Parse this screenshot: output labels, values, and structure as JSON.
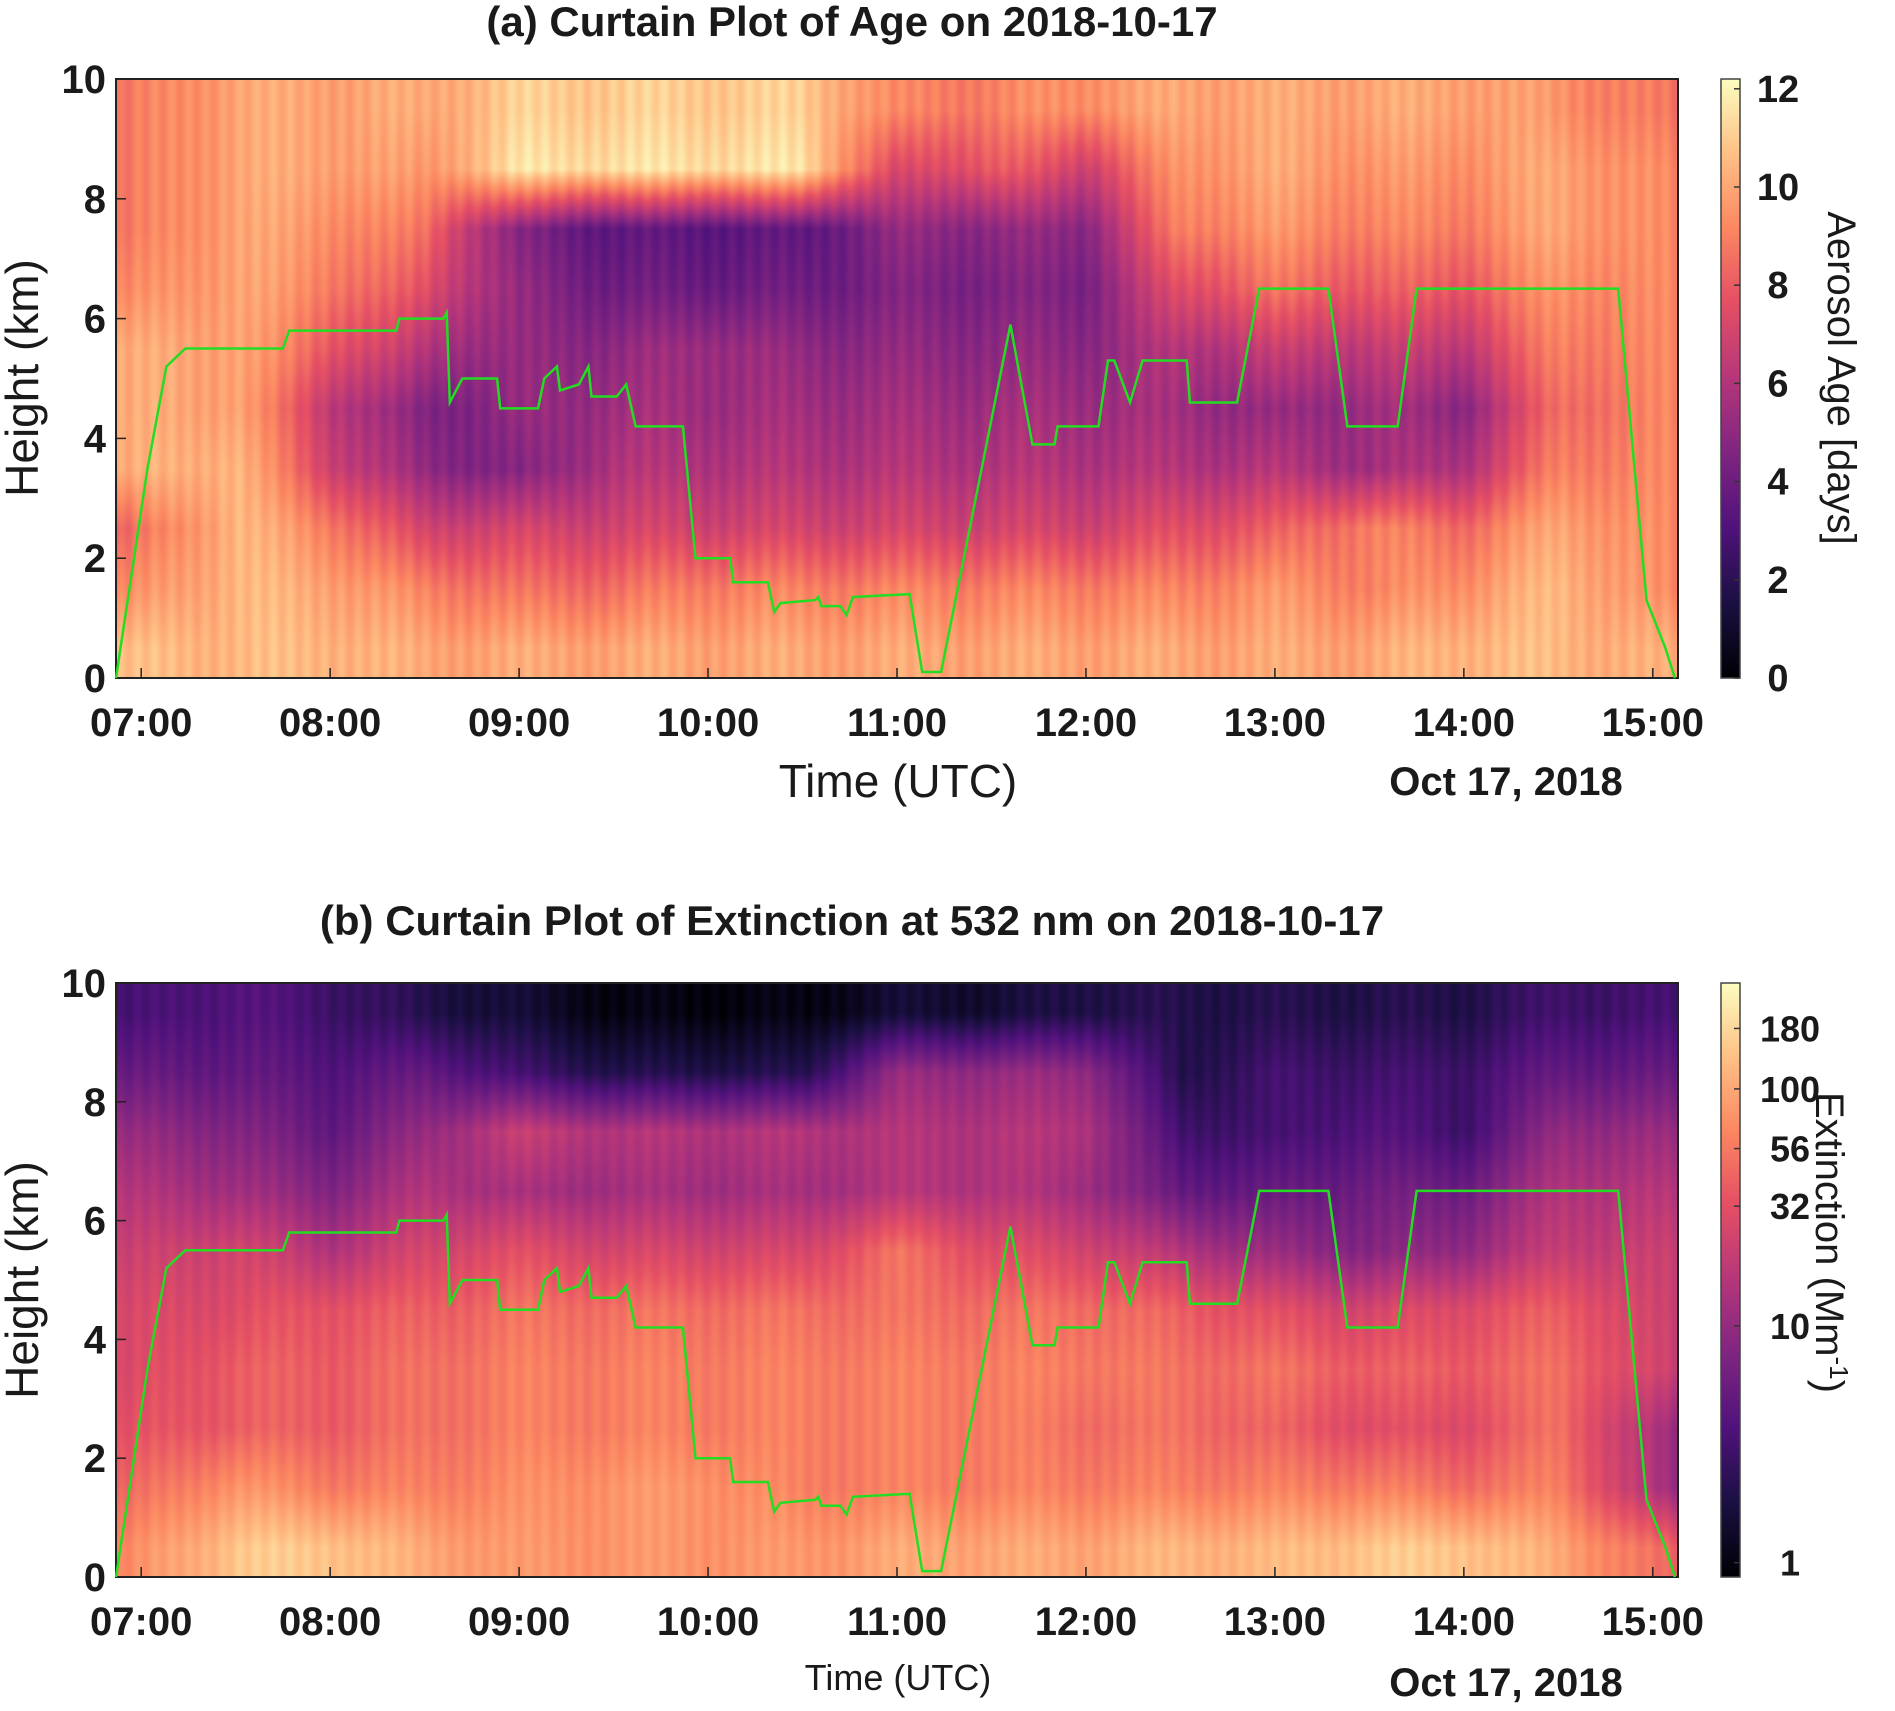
{
  "chart_data": [
    {
      "type": "heatmap",
      "title": "(a) Curtain Plot of Age on 2018-10-17",
      "xlabel": "Time (UTC)",
      "xlabel_secondary": "Oct 17, 2018",
      "ylabel": "Height (km)",
      "xticks": [
        "07:00",
        "08:00",
        "09:00",
        "10:00",
        "11:00",
        "12:00",
        "13:00",
        "14:00",
        "15:00"
      ],
      "yticks": [
        "0",
        "2",
        "4",
        "6",
        "8",
        "10"
      ],
      "xlim": [
        "06:52",
        "15:08"
      ],
      "ylim": [
        0,
        10
      ],
      "colormap": "magma",
      "colorbar": {
        "label": "Aerosol Age [days]",
        "scale": "linear",
        "range": [
          0,
          12.2
        ],
        "ticks": [
          "0",
          "2",
          "4",
          "6",
          "8",
          "10",
          "12"
        ]
      },
      "grid_times": [
        "06:52",
        "07:30",
        "08:00",
        "08:30",
        "09:00",
        "09:30",
        "10:00",
        "10:30",
        "11:00",
        "11:30",
        "12:00",
        "12:30",
        "13:00",
        "13:30",
        "14:00",
        "14:30",
        "15:07"
      ],
      "grid_heights_km": [
        0.5,
        1.5,
        2.5,
        3.5,
        4.5,
        5.5,
        6.5,
        7.5,
        8.5,
        9.5
      ],
      "values": [
        [
          10.5,
          10.5,
          10.5,
          10,
          10,
          10,
          10,
          10,
          10,
          10,
          10,
          10,
          10,
          10,
          10.5,
          10.5,
          10
        ],
        [
          9,
          10.5,
          10,
          9,
          8.5,
          8.5,
          9,
          9,
          9,
          9,
          9,
          9,
          9.5,
          9,
          9.5,
          10.5,
          9
        ],
        [
          8,
          10.5,
          9,
          7,
          7,
          7,
          7,
          7,
          7,
          7,
          7,
          7.5,
          8,
          9,
          8.5,
          10,
          9
        ],
        [
          10,
          10.5,
          7,
          5,
          4.5,
          6,
          6,
          6,
          6,
          6,
          6,
          6,
          6,
          5.5,
          6,
          9,
          9
        ],
        [
          10,
          10,
          6.5,
          4.5,
          5,
          5.5,
          5.5,
          5.5,
          5.5,
          5.5,
          5.5,
          5.5,
          5,
          5.5,
          5,
          8.5,
          9
        ],
        [
          10,
          10,
          8,
          6,
          5,
          5,
          5.5,
          5,
          5,
          5,
          5,
          6,
          6.5,
          6.5,
          6.5,
          9,
          9
        ],
        [
          9,
          10,
          9,
          7.5,
          5,
          4,
          4,
          4,
          4.5,
          4.5,
          4.5,
          7.5,
          8.5,
          8,
          8,
          9.5,
          9
        ],
        [
          8.5,
          10,
          9.5,
          8.5,
          4.5,
          3.5,
          3.5,
          3.5,
          5,
          5,
          5,
          9,
          9.5,
          9,
          9,
          10,
          9
        ],
        [
          8.5,
          10,
          10,
          9.5,
          11.5,
          11.5,
          11.5,
          11.5,
          7,
          8,
          7,
          9.5,
          10,
          9.5,
          9.5,
          10,
          9
        ],
        [
          8.5,
          10,
          10,
          10,
          11,
          11,
          11,
          11,
          9,
          9,
          9.5,
          10,
          10,
          10,
          10,
          9.5,
          8.5
        ]
      ],
      "flight_track_color": "#22dd22"
    },
    {
      "type": "heatmap",
      "title": "(b) Curtain Plot of Extinction at 532 nm on 2018-10-17",
      "xlabel": "Time (UTC)",
      "xlabel_secondary": "Oct 17, 2018",
      "ylabel": "Height (km)",
      "xticks": [
        "07:00",
        "08:00",
        "09:00",
        "10:00",
        "11:00",
        "12:00",
        "13:00",
        "14:00",
        "15:00"
      ],
      "yticks": [
        "0",
        "2",
        "4",
        "6",
        "8",
        "10"
      ],
      "xlim": [
        "06:52",
        "15:08"
      ],
      "ylim": [
        0,
        10
      ],
      "colormap": "magma",
      "colorbar": {
        "label": "Extinction (Mm",
        "label_sup": "-1",
        "label_end": ")",
        "scale": "log",
        "range": [
          0.87,
          280
        ],
        "ticks": [
          "1",
          "10",
          "32",
          "56",
          "100",
          "180"
        ]
      },
      "grid_times": [
        "06:52",
        "07:30",
        "08:00",
        "08:30",
        "09:00",
        "09:30",
        "10:00",
        "10:30",
        "11:00",
        "11:30",
        "12:00",
        "12:30",
        "13:00",
        "13:30",
        "14:00",
        "14:30",
        "15:07"
      ],
      "grid_heights_km": [
        0.5,
        1.5,
        2.5,
        3.5,
        4.5,
        5.5,
        6.5,
        7.5,
        8.5,
        9.5
      ],
      "values": [
        [
          60,
          150,
          150,
          100,
          80,
          80,
          80,
          80,
          100,
          100,
          100,
          120,
          120,
          150,
          150,
          100,
          40
        ],
        [
          40,
          80,
          60,
          60,
          70,
          80,
          80,
          60,
          60,
          60,
          60,
          60,
          60,
          60,
          50,
          60,
          10
        ],
        [
          30,
          40,
          40,
          50,
          60,
          60,
          60,
          60,
          60,
          60,
          50,
          50,
          40,
          30,
          30,
          50,
          10
        ],
        [
          25,
          40,
          40,
          50,
          60,
          60,
          60,
          60,
          60,
          60,
          60,
          50,
          50,
          40,
          40,
          50,
          20
        ],
        [
          25,
          30,
          35,
          40,
          50,
          50,
          50,
          50,
          50,
          50,
          50,
          40,
          30,
          25,
          30,
          40,
          20
        ],
        [
          20,
          25,
          15,
          25,
          30,
          25,
          25,
          25,
          50,
          30,
          25,
          15,
          10,
          8,
          10,
          20,
          20
        ],
        [
          15,
          12,
          8,
          15,
          12,
          12,
          12,
          12,
          15,
          15,
          12,
          5,
          5,
          6,
          6,
          15,
          15
        ],
        [
          10,
          8,
          5,
          10,
          20,
          15,
          15,
          15,
          15,
          15,
          15,
          3,
          3,
          4,
          3,
          10,
          10
        ],
        [
          5,
          5,
          4,
          5,
          3,
          2,
          2,
          2,
          10,
          10,
          10,
          2,
          3,
          3,
          3,
          5,
          5
        ],
        [
          3,
          4,
          3,
          2,
          1.5,
          1,
          1,
          1,
          1.5,
          1.5,
          2,
          2,
          2,
          2,
          2,
          3,
          3
        ]
      ],
      "flight_track_color": "#22dd22"
    }
  ],
  "flight_track": [
    [
      "06:52",
      0
    ],
    [
      "07:02",
      3.5
    ],
    [
      "07:08",
      5.2
    ],
    [
      "07:12",
      5.4
    ],
    [
      "07:14",
      5.5
    ],
    [
      "07:45",
      5.5
    ],
    [
      "07:47",
      5.8
    ],
    [
      "08:21",
      5.8
    ],
    [
      "08:22",
      6.0
    ],
    [
      "08:36",
      6.0
    ],
    [
      "08:37",
      6.1
    ],
    [
      "08:38",
      4.6
    ],
    [
      "08:42",
      5.0
    ],
    [
      "08:53",
      5.0
    ],
    [
      "08:54",
      4.5
    ],
    [
      "09:06",
      4.5
    ],
    [
      "09:08",
      5.0
    ],
    [
      "09:12",
      5.2
    ],
    [
      "09:13",
      4.8
    ],
    [
      "09:19",
      4.9
    ],
    [
      "09:22",
      5.2
    ],
    [
      "09:23",
      4.7
    ],
    [
      "09:31",
      4.7
    ],
    [
      "09:34",
      4.9
    ],
    [
      "09:37",
      4.2
    ],
    [
      "09:52",
      4.2
    ],
    [
      "09:56",
      2.0
    ],
    [
      "10:07",
      2.0
    ],
    [
      "10:08",
      1.6
    ],
    [
      "10:19",
      1.6
    ],
    [
      "10:21",
      1.1
    ],
    [
      "10:23",
      1.25
    ],
    [
      "10:34",
      1.3
    ],
    [
      "10:35",
      1.35
    ],
    [
      "10:36",
      1.2
    ],
    [
      "10:42",
      1.2
    ],
    [
      "10:44",
      1.05
    ],
    [
      "10:46",
      1.35
    ],
    [
      "11:04",
      1.4
    ],
    [
      "11:08",
      0.1
    ],
    [
      "11:14",
      0.1
    ],
    [
      "11:36",
      5.9
    ],
    [
      "11:43",
      3.9
    ],
    [
      "11:50",
      3.9
    ],
    [
      "11:51",
      4.2
    ],
    [
      "12:04",
      4.2
    ],
    [
      "12:07",
      5.3
    ],
    [
      "12:09",
      5.3
    ],
    [
      "12:14",
      4.6
    ],
    [
      "12:18",
      5.3
    ],
    [
      "12:32",
      5.3
    ],
    [
      "12:33",
      4.6
    ],
    [
      "12:48",
      4.6
    ],
    [
      "12:55",
      6.5
    ],
    [
      "13:17",
      6.5
    ],
    [
      "13:23",
      4.2
    ],
    [
      "13:39",
      4.2
    ],
    [
      "13:45",
      6.5
    ],
    [
      "14:49",
      6.5
    ],
    [
      "14:58",
      1.3
    ],
    [
      "15:04",
      0.5
    ],
    [
      "15:07",
      0
    ]
  ]
}
